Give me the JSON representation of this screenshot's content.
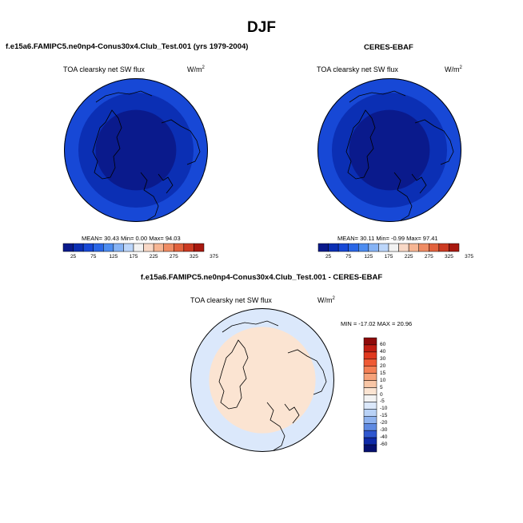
{
  "figure": {
    "season": "DJF",
    "left_title": "f.e15a6.FAMIPC5.ne0np4-Conus30x4.Club_Test.001 (yrs 1979-2004)",
    "right_title": "CERES-EBAF",
    "diff_title": "f.e15a6.FAMIPC5.ne0np4-Conus30x4.Club_Test.001 - CERES-EBAF"
  },
  "panels": {
    "model": {
      "variable": "TOA clearsky net SW flux",
      "units": "W/m",
      "units_exp": "2",
      "stats": "MEAN=  30.43  Min=   0.00  Max=  94.03"
    },
    "obs": {
      "variable": "TOA clearsky net SW flux",
      "units": "W/m",
      "units_exp": "2",
      "stats": "MEAN=  30.11  Min=  -0.99  Max=  97.41"
    },
    "diff": {
      "variable": "TOA clearsky net SW flux",
      "units": "W/m",
      "units_exp": "2",
      "stats": "MIN = -17.02 MAX =  20.96"
    }
  },
  "chart_data": [
    {
      "type": "heatmap",
      "title": "f.e15a6.FAMIPC5.ne0np4-Conus30x4.Club_Test.001 (yrs 1979-2004)",
      "subtitle": "TOA clearsky net SW flux",
      "projection": "north polar stereographic",
      "mean": 30.43,
      "min": 0.0,
      "max": 94.03,
      "colorbar_ticks": [
        "25",
        "75",
        "125",
        "175",
        "225",
        "275",
        "325",
        "375"
      ],
      "colorbar_colors": [
        "#0a1a8c",
        "#0b2fb4",
        "#1748d6",
        "#2a66e6",
        "#4d8cf0",
        "#86b3f5",
        "#bcd6fa",
        "#f2f2f2",
        "#f8d8c6",
        "#f6b593",
        "#ef8c64",
        "#e2623d",
        "#cc3a22",
        "#a8180f"
      ],
      "polar_bands": [
        {
          "radius": 1.0,
          "color": "#1748d6"
        },
        {
          "radius": 0.8,
          "color": "#0b2fb4"
        },
        {
          "radius": 0.56,
          "color": "#0a1a8c"
        }
      ]
    },
    {
      "type": "heatmap",
      "title": "CERES-EBAF",
      "subtitle": "TOA clearsky net SW flux",
      "projection": "north polar stereographic",
      "mean": 30.11,
      "min": -0.99,
      "max": 97.41,
      "colorbar_ticks": [
        "25",
        "75",
        "125",
        "175",
        "225",
        "275",
        "325",
        "375"
      ],
      "colorbar_colors": [
        "#0a1a8c",
        "#0b2fb4",
        "#1748d6",
        "#2a66e6",
        "#4d8cf0",
        "#86b3f5",
        "#bcd6fa",
        "#f2f2f2",
        "#f8d8c6",
        "#f6b593",
        "#ef8c64",
        "#e2623d",
        "#cc3a22",
        "#a8180f"
      ],
      "polar_bands": [
        {
          "radius": 1.0,
          "color": "#1748d6"
        },
        {
          "radius": 0.8,
          "color": "#0b2fb4"
        },
        {
          "radius": 0.56,
          "color": "#0a1a8c"
        }
      ]
    },
    {
      "type": "heatmap",
      "title": "f.e15a6.FAMIPC5.ne0np4-Conus30x4.Club_Test.001 - CERES-EBAF",
      "subtitle": "TOA clearsky net SW flux",
      "projection": "north polar stereographic",
      "min": -17.02,
      "max": 20.96,
      "colorbar_ticks": [
        "60",
        "40",
        "30",
        "20",
        "15",
        "10",
        "5",
        "0",
        "-5",
        "-10",
        "-15",
        "-20",
        "-30",
        "-40",
        "-60"
      ],
      "colorbar_colors": [
        "#8e0a0a",
        "#c01d12",
        "#e0391f",
        "#ef5a35",
        "#f47f55",
        "#f6a27a",
        "#f8c6a6",
        "#fbe4d2",
        "#f3f3f3",
        "#dbe8fb",
        "#b9d2f6",
        "#8fb3ef",
        "#5f8ae2",
        "#2f57cf",
        "#0f2aa8",
        "#061070"
      ],
      "polar_bands": [
        {
          "radius": 1.0,
          "color": "#dbe8fb"
        },
        {
          "radius": 0.74,
          "color": "#fbe4d2"
        }
      ]
    }
  ]
}
